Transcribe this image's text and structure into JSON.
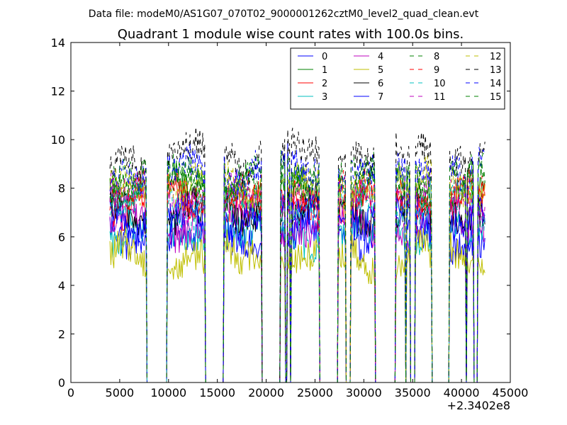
{
  "figure": {
    "suptitle": "Data file: modeM0/AS1G07_070T02_9000001262cztM0_level2_quad_clean.evt",
    "offset_label": "+2.3402e8"
  },
  "chart_data": {
    "type": "line",
    "title": "Quadrant 1 module wise count rates with 100.0s bins.",
    "xlabel": "",
    "ylabel": "",
    "xlim": [
      0,
      45000
    ],
    "ylim": [
      0,
      14
    ],
    "x_offset": 234020000,
    "xticks": [
      0,
      5000,
      10000,
      15000,
      20000,
      25000,
      30000,
      35000,
      40000,
      45000
    ],
    "yticks": [
      0,
      2,
      4,
      6,
      8,
      10,
      12,
      14
    ],
    "legend_position": "upper-right",
    "legend_columns": 4,
    "x_start": 4000,
    "x_end": 42400,
    "bin_size": 100,
    "on_segments": [
      [
        4000,
        7700
      ],
      [
        9900,
        13700
      ],
      [
        15700,
        16300
      ],
      [
        16400,
        19500
      ],
      [
        21500,
        21900
      ],
      [
        22200,
        22400
      ],
      [
        22600,
        25400
      ],
      [
        27400,
        28100
      ],
      [
        28700,
        31100
      ],
      [
        33300,
        34200
      ],
      [
        34400,
        34700
      ],
      [
        35300,
        36900
      ],
      [
        38800,
        40400
      ],
      [
        40600,
        41200
      ],
      [
        41700,
        42400
      ]
    ],
    "series": [
      {
        "name": "0",
        "color": "#0000ff",
        "dash": "solid",
        "level": 6.0
      },
      {
        "name": "1",
        "color": "#008000",
        "dash": "solid",
        "level": 7.9
      },
      {
        "name": "2",
        "color": "#ff0000",
        "dash": "solid",
        "level": 7.4
      },
      {
        "name": "3",
        "color": "#00bfbf",
        "dash": "solid",
        "level": 6.1
      },
      {
        "name": "4",
        "color": "#bf00bf",
        "dash": "solid",
        "level": 6.5
      },
      {
        "name": "5",
        "color": "#bfbf00",
        "dash": "solid",
        "level": 5.2
      },
      {
        "name": "6",
        "color": "#000000",
        "dash": "solid",
        "level": 7.0
      },
      {
        "name": "7",
        "color": "#0000ff",
        "dash": "solid",
        "level": 6.8
      },
      {
        "name": "8",
        "color": "#008000",
        "dash": "dashed",
        "level": 8.3
      },
      {
        "name": "9",
        "color": "#ff0000",
        "dash": "dashed",
        "level": 7.8
      },
      {
        "name": "10",
        "color": "#00bfbf",
        "dash": "dashed",
        "level": 7.3
      },
      {
        "name": "11",
        "color": "#bf00bf",
        "dash": "dashed",
        "level": 7.6
      },
      {
        "name": "12",
        "color": "#bfbf00",
        "dash": "dashed",
        "level": 8.1
      },
      {
        "name": "13",
        "color": "#000000",
        "dash": "dashed",
        "level": 9.3
      },
      {
        "name": "14",
        "color": "#0000ff",
        "dash": "dashed",
        "level": 8.7
      },
      {
        "name": "15",
        "color": "#008000",
        "dash": "dashed",
        "level": 8.5
      }
    ]
  }
}
